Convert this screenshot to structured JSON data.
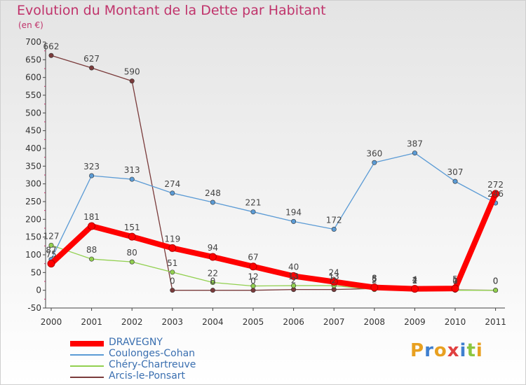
{
  "title": "Evolution du Montant de la Dette par Habitant",
  "subtitle": "(en €)",
  "brand": "Proxiti",
  "chart_data": {
    "type": "line",
    "title": "Evolution du Montant de la Dette par Habitant",
    "subtitle": "(en €)",
    "xlabel": "",
    "ylabel": "",
    "x": [
      "2000",
      "2001",
      "2002",
      "2003",
      "2004",
      "2005",
      "2006",
      "2007",
      "2008",
      "2009",
      "2010",
      "2011"
    ],
    "ylim": [
      -50,
      700
    ],
    "yticks": [
      -50,
      0,
      50,
      100,
      150,
      200,
      250,
      300,
      350,
      400,
      450,
      500,
      550,
      600,
      650,
      700
    ],
    "grid": false,
    "legend_position": "bottom-left",
    "series": [
      {
        "name": "DRAVEGNY",
        "color": "#ff0000",
        "values": [
          75,
          181,
          151,
          119,
          94,
          67,
          40,
          24,
          8,
          4,
          5,
          272
        ]
      },
      {
        "name": "Coulonges-Cohan",
        "color": "#5b9bd5",
        "values": [
          87,
          323,
          313,
          274,
          248,
          221,
          194,
          172,
          360,
          387,
          307,
          246
        ]
      },
      {
        "name": "Chéry-Chartreuve",
        "color": "#92d050",
        "values": [
          127,
          88,
          80,
          51,
          22,
          12,
          13,
          13,
          2,
          2,
          0,
          0
        ]
      },
      {
        "name": "Arcis-le-Ponsart",
        "color": "#7a3b3b",
        "values": [
          662,
          627,
          590,
          0,
          0,
          0,
          2,
          2,
          5,
          1,
          1,
          0
        ]
      }
    ]
  }
}
